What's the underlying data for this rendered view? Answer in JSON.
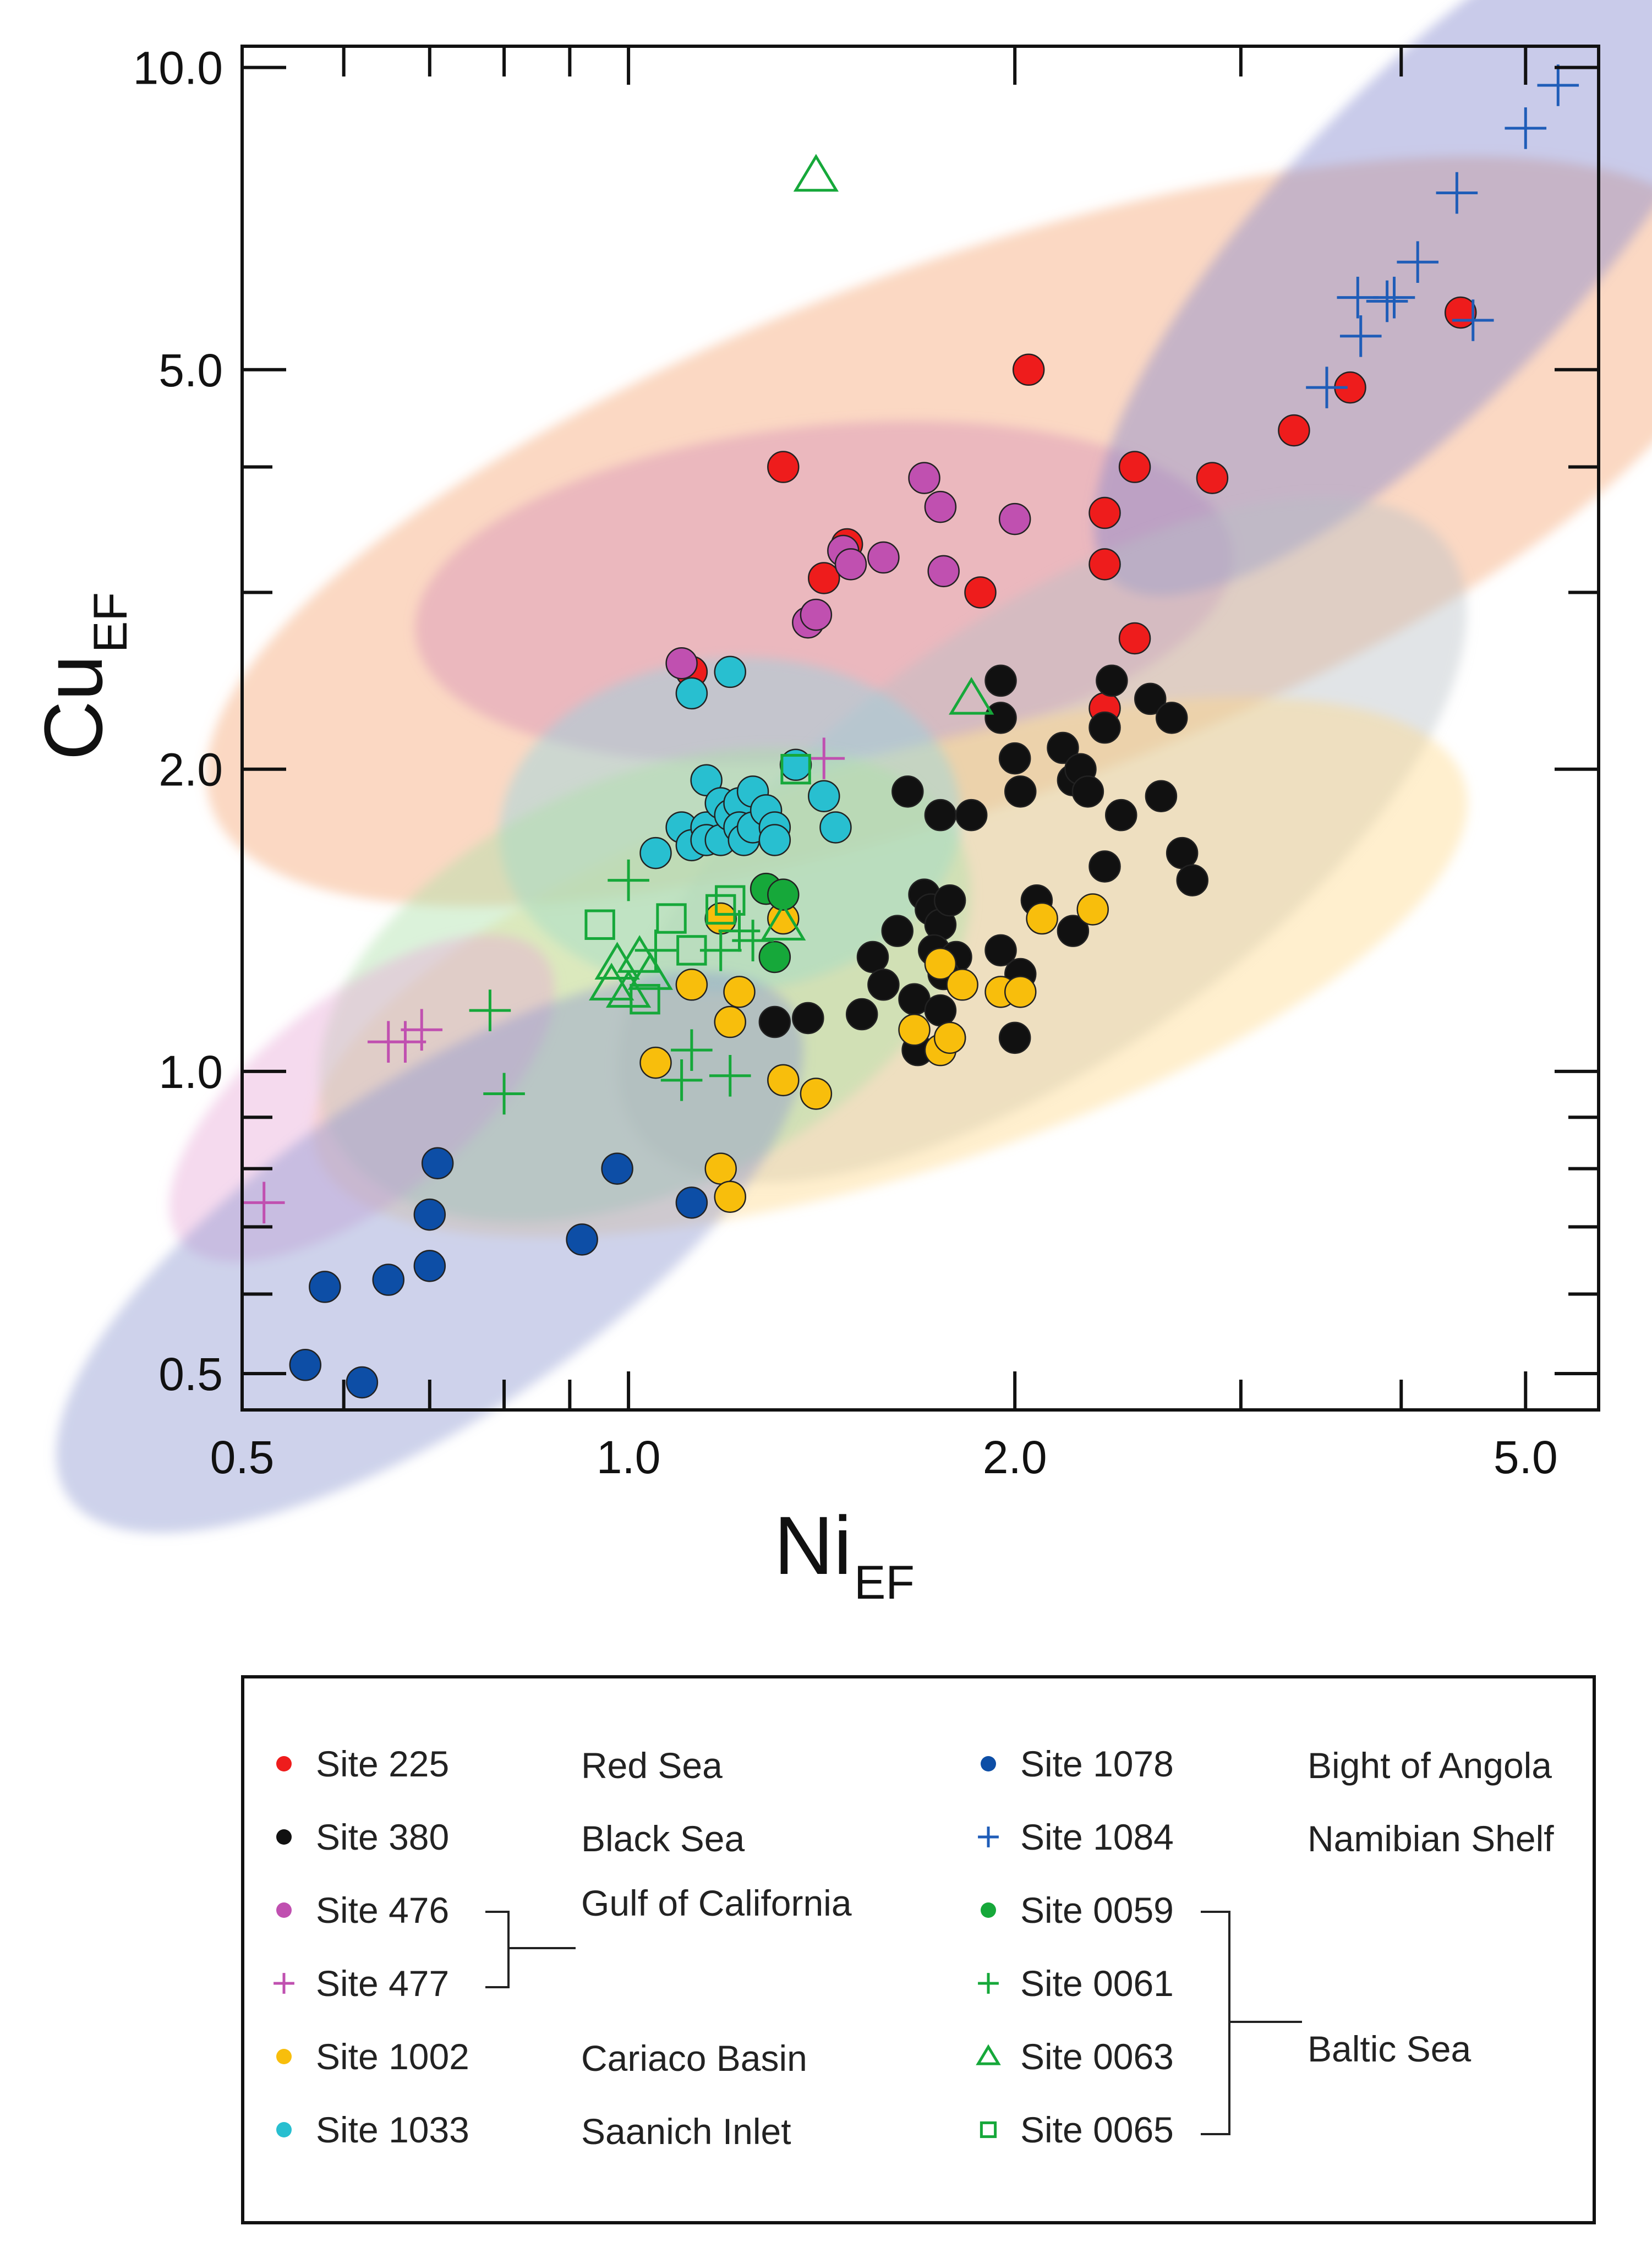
{
  "chart_data": {
    "type": "scatter",
    "x_scale": "log",
    "y_scale": "log",
    "xlabel": "Ni",
    "xlabel_subscript": "EF",
    "ylabel": "Cu",
    "ylabel_subscript": "EF",
    "xlim": [
      0.5,
      5.7
    ],
    "ylim": [
      0.46,
      10.5
    ],
    "x_ticks": [
      {
        "value": 0.5,
        "label": "0.5"
      },
      {
        "value": 1.0,
        "label": "1.0"
      },
      {
        "value": 2.0,
        "label": "2.0"
      },
      {
        "value": 5.0,
        "label": "5.0"
      }
    ],
    "y_ticks": [
      {
        "value": 0.5,
        "label": "0.5"
      },
      {
        "value": 1.0,
        "label": "1.0"
      },
      {
        "value": 2.0,
        "label": "2.0"
      },
      {
        "value": 5.0,
        "label": "5.0"
      },
      {
        "value": 10.0,
        "label": "10.0"
      }
    ],
    "minor_ticks": [
      0.6,
      0.7,
      0.8,
      0.9,
      3,
      4
    ],
    "ellipses": [
      {
        "name": "Red Sea field",
        "color": "#f6a26e",
        "cx": 1.85,
        "cy": 3.45,
        "rx": 0.63,
        "ry": 0.21,
        "rot": 20
      },
      {
        "name": "Gulf of California field",
        "color": "#d58cb6",
        "cx": 1.42,
        "cy": 3.0,
        "rx": 0.32,
        "ry": 0.13,
        "rot": 6
      },
      {
        "name": "Namibian Shelf field",
        "color": "#7f84cc",
        "cx": 4.2,
        "cy": 6.7,
        "rx": 0.36,
        "ry": 0.12,
        "rot": 47
      },
      {
        "name": "Black Sea field",
        "color": "#b8bec6",
        "cx": 2.1,
        "cy": 1.7,
        "rx": 0.39,
        "ry": 0.17,
        "rot": 36
      },
      {
        "name": "Cariaco Basin field",
        "color": "#ffd98a",
        "cx": 1.6,
        "cy": 1.27,
        "rx": 0.47,
        "ry": 0.16,
        "rot": 18
      },
      {
        "name": "Saanich Inlet field",
        "color": "#8fd7e2",
        "cx": 1.2,
        "cy": 1.76,
        "rx": 0.18,
        "ry": 0.13,
        "rot": 5
      },
      {
        "name": "Baltic Sea field",
        "color": "#a9dfa6",
        "cx": 1.03,
        "cy": 1.22,
        "rx": 0.27,
        "ry": 0.16,
        "rot": 25
      },
      {
        "name": "Gulf of California (Site 477) field",
        "color": "#e6a8d6",
        "cx": 0.62,
        "cy": 0.94,
        "rx": 0.18,
        "ry": 0.08,
        "rot": 38
      },
      {
        "name": "Bight of Angola field",
        "color": "#8a93cf",
        "cx": 0.7,
        "cy": 0.66,
        "rx": 0.34,
        "ry": 0.13,
        "rot": 34
      }
    ],
    "series": [
      {
        "name": "Site 225",
        "region": "Red Sea",
        "marker": "circle",
        "color": "#ee1c1c",
        "points": [
          [
            1.32,
            4.0
          ],
          [
            1.42,
            3.1
          ],
          [
            1.48,
            3.35
          ],
          [
            1.88,
            3.0
          ],
          [
            2.05,
            5.0
          ],
          [
            2.35,
            3.6
          ],
          [
            2.35,
            3.2
          ],
          [
            2.48,
            4.0
          ],
          [
            2.85,
            3.9
          ],
          [
            3.3,
            4.35
          ],
          [
            3.65,
            4.8
          ],
          [
            4.45,
            5.7
          ],
          [
            2.48,
            2.7
          ],
          [
            2.35,
            2.3
          ],
          [
            1.12,
            2.5
          ]
        ]
      },
      {
        "name": "Site 380",
        "region": "Black Sea",
        "marker": "circle",
        "color": "#111111",
        "points": [
          [
            1.95,
            2.45
          ],
          [
            1.95,
            2.25
          ],
          [
            2.0,
            2.05
          ],
          [
            2.02,
            1.9
          ],
          [
            2.18,
            2.1
          ],
          [
            2.22,
            1.95
          ],
          [
            2.25,
            2.0
          ],
          [
            2.28,
            1.9
          ],
          [
            2.35,
            2.2
          ],
          [
            2.38,
            2.45
          ],
          [
            2.42,
            1.8
          ],
          [
            2.55,
            2.35
          ],
          [
            2.6,
            1.88
          ],
          [
            2.65,
            2.25
          ],
          [
            2.7,
            1.65
          ],
          [
            2.75,
            1.55
          ],
          [
            1.65,
            1.9
          ],
          [
            1.75,
            1.8
          ],
          [
            1.85,
            1.8
          ],
          [
            1.7,
            1.5
          ],
          [
            1.72,
            1.45
          ],
          [
            1.75,
            1.4
          ],
          [
            1.78,
            1.48
          ],
          [
            1.73,
            1.32
          ],
          [
            1.8,
            1.3
          ],
          [
            1.95,
            1.32
          ],
          [
            2.02,
            1.25
          ],
          [
            2.08,
            1.48
          ],
          [
            2.22,
            1.38
          ],
          [
            2.35,
            1.6
          ],
          [
            1.55,
            1.3
          ],
          [
            1.58,
            1.22
          ],
          [
            1.62,
            1.38
          ],
          [
            1.67,
            1.18
          ],
          [
            1.68,
            1.05
          ],
          [
            1.75,
            1.15
          ],
          [
            1.78,
            1.08
          ],
          [
            2.0,
            1.08
          ],
          [
            1.3,
            1.12
          ],
          [
            1.38,
            1.13
          ],
          [
            1.52,
            1.14
          ],
          [
            1.76,
            1.25
          ]
        ]
      },
      {
        "name": "Site 476",
        "region": "Gulf of California",
        "marker": "circle",
        "color": "#c050b0",
        "points": [
          [
            1.1,
            2.55
          ],
          [
            1.38,
            2.8
          ],
          [
            1.4,
            2.85
          ],
          [
            1.47,
            3.3
          ],
          [
            1.49,
            3.2
          ],
          [
            1.58,
            3.25
          ],
          [
            1.7,
            3.9
          ],
          [
            1.75,
            3.65
          ],
          [
            1.76,
            3.15
          ],
          [
            2.0,
            3.55
          ]
        ]
      },
      {
        "name": "Site 477",
        "region": "Gulf of California",
        "marker": "plus",
        "color": "#c050b0",
        "points": [
          [
            0.52,
            0.74
          ],
          [
            0.65,
            1.07
          ],
          [
            0.67,
            1.07
          ],
          [
            0.69,
            1.1
          ],
          [
            1.42,
            2.05
          ]
        ]
      },
      {
        "name": "Site 1002",
        "region": "Cariaco Basin",
        "marker": "circle",
        "color": "#f8be0c",
        "points": [
          [
            1.05,
            1.02
          ],
          [
            1.12,
            1.22
          ],
          [
            1.18,
            1.42
          ],
          [
            1.2,
            1.12
          ],
          [
            1.22,
            1.2
          ],
          [
            1.32,
            1.42
          ],
          [
            1.32,
            0.98
          ],
          [
            1.4,
            0.95
          ],
          [
            1.75,
            1.28
          ],
          [
            1.82,
            1.22
          ],
          [
            1.95,
            1.2
          ],
          [
            2.02,
            1.2
          ],
          [
            2.1,
            1.42
          ],
          [
            2.3,
            1.45
          ],
          [
            1.67,
            1.1
          ],
          [
            1.75,
            1.05
          ],
          [
            1.78,
            1.08
          ],
          [
            1.18,
            0.8
          ],
          [
            1.2,
            0.75
          ]
        ]
      },
      {
        "name": "Site 1033",
        "region": "Saanich Inlet",
        "marker": "circle",
        "color": "#28bfd0",
        "points": [
          [
            1.05,
            1.65
          ],
          [
            1.1,
            1.75
          ],
          [
            1.12,
            1.68
          ],
          [
            1.15,
            1.95
          ],
          [
            1.15,
            1.75
          ],
          [
            1.15,
            1.7
          ],
          [
            1.18,
            1.85
          ],
          [
            1.18,
            1.7
          ],
          [
            1.2,
            1.8
          ],
          [
            1.22,
            1.85
          ],
          [
            1.22,
            1.75
          ],
          [
            1.23,
            1.7
          ],
          [
            1.25,
            1.9
          ],
          [
            1.25,
            1.75
          ],
          [
            1.28,
            1.82
          ],
          [
            1.3,
            1.75
          ],
          [
            1.3,
            1.7
          ],
          [
            1.35,
            2.02
          ],
          [
            1.42,
            1.88
          ],
          [
            1.45,
            1.75
          ],
          [
            1.12,
            2.38
          ],
          [
            1.2,
            2.5
          ]
        ]
      },
      {
        "name": "Site 1078",
        "region": "Bight of Angola",
        "marker": "circle",
        "color": "#0d4ea6",
        "points": [
          [
            0.56,
            0.51
          ],
          [
            0.58,
            0.61
          ],
          [
            0.62,
            0.49
          ],
          [
            0.65,
            0.62
          ],
          [
            0.7,
            0.64
          ],
          [
            0.7,
            0.72
          ],
          [
            0.71,
            0.81
          ],
          [
            0.92,
            0.68
          ],
          [
            0.98,
            0.8
          ],
          [
            1.12,
            0.74
          ]
        ]
      },
      {
        "name": "Site 1084",
        "region": "Namibian Shelf",
        "marker": "plus",
        "color": "#1f5db8",
        "points": [
          [
            3.5,
            4.8
          ],
          [
            3.7,
            5.9
          ],
          [
            3.72,
            5.4
          ],
          [
            3.9,
            5.85
          ],
          [
            3.95,
            5.9
          ],
          [
            4.12,
            6.4
          ],
          [
            4.42,
            7.5
          ],
          [
            4.55,
            5.6
          ],
          [
            5.0,
            8.7
          ],
          [
            5.3,
            9.6
          ]
        ]
      },
      {
        "name": "Site 0059",
        "region": "Baltic Sea",
        "marker": "circle",
        "color": "#16a83a",
        "points": [
          [
            1.28,
            1.52
          ],
          [
            1.3,
            1.3
          ],
          [
            1.32,
            1.5
          ]
        ]
      },
      {
        "name": "Site 0061",
        "region": "Baltic Sea",
        "marker": "plus",
        "color": "#16a83a",
        "points": [
          [
            0.78,
            1.15
          ],
          [
            0.8,
            0.95
          ],
          [
            1.0,
            1.55
          ],
          [
            1.05,
            1.32
          ],
          [
            1.1,
            0.98
          ],
          [
            1.12,
            1.05
          ],
          [
            1.18,
            1.32
          ],
          [
            1.2,
            0.99
          ],
          [
            1.22,
            1.38
          ],
          [
            1.25,
            1.35
          ]
        ]
      },
      {
        "name": "Site 0063",
        "region": "Baltic Sea",
        "marker": "triangle",
        "color": "#16a83a",
        "points": [
          [
            0.97,
            1.22
          ],
          [
            0.98,
            1.28
          ],
          [
            1.0,
            1.2
          ],
          [
            1.02,
            1.3
          ],
          [
            1.04,
            1.25
          ],
          [
            1.32,
            1.4
          ],
          [
            1.4,
            7.8
          ],
          [
            1.85,
            2.35
          ]
        ]
      },
      {
        "name": "Site 0065",
        "region": "Baltic Sea",
        "marker": "square",
        "color": "#16a83a",
        "points": [
          [
            0.95,
            1.4
          ],
          [
            1.03,
            1.18
          ],
          [
            1.08,
            1.42
          ],
          [
            1.12,
            1.32
          ],
          [
            1.18,
            1.45
          ],
          [
            1.2,
            1.48
          ],
          [
            1.35,
            2.0
          ]
        ]
      }
    ]
  },
  "legend": {
    "left": [
      {
        "marker": "circle",
        "color": "#ee1c1c",
        "site": "Site 225",
        "region": "Red Sea"
      },
      {
        "marker": "circle",
        "color": "#111111",
        "site": "Site 380",
        "region": "Black Sea"
      },
      {
        "marker": "circle",
        "color": "#c050b0",
        "site": "Site 476",
        "region": ""
      },
      {
        "marker": "plus",
        "color": "#c050b0",
        "site": "Site 477",
        "region": ""
      },
      {
        "marker": "circle",
        "color": "#f8be0c",
        "site": "Site 1002",
        "region": "Cariaco Basin"
      },
      {
        "marker": "circle",
        "color": "#28bfd0",
        "site": "Site 1033",
        "region": "Saanich Inlet"
      }
    ],
    "left_group_region": "Gulf of California",
    "right": [
      {
        "marker": "circle",
        "color": "#0d4ea6",
        "site": "Site 1078",
        "region": "Bight of Angola"
      },
      {
        "marker": "plus",
        "color": "#1f5db8",
        "site": "Site 1084",
        "region": "Namibian Shelf"
      },
      {
        "marker": "circle",
        "color": "#16a83a",
        "site": "Site 0059",
        "region": ""
      },
      {
        "marker": "plus",
        "color": "#16a83a",
        "site": "Site 0061",
        "region": ""
      },
      {
        "marker": "triangle",
        "color": "#16a83a",
        "site": "Site 0063",
        "region": ""
      },
      {
        "marker": "square",
        "color": "#16a83a",
        "site": "Site 0065",
        "region": ""
      }
    ],
    "right_group_region": "Baltic Sea"
  }
}
